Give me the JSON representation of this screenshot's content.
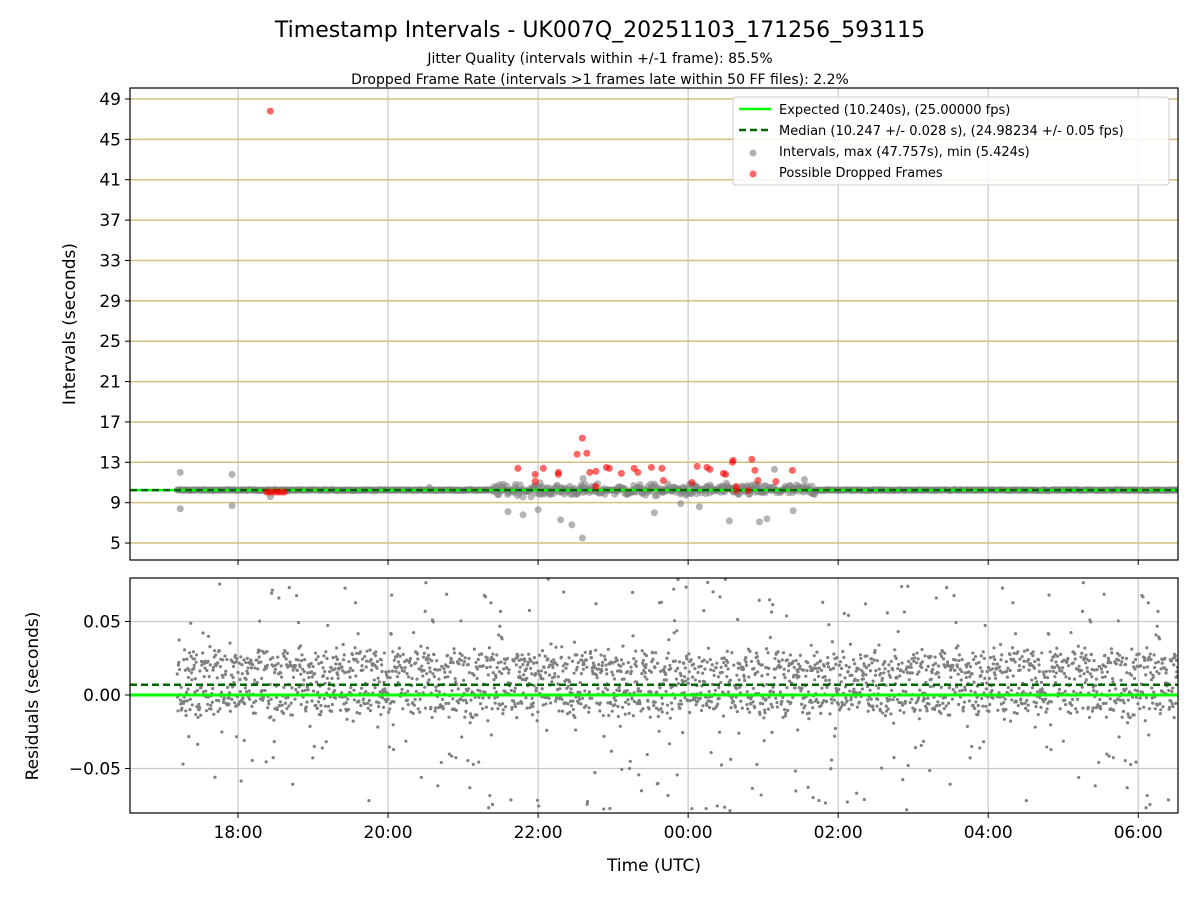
{
  "chart_data": [
    {
      "type": "scatter",
      "title": "Timestamp Intervals - UK007Q_20251103_171256_593115",
      "subtitle_1": "Jitter Quality (intervals within +/-1 frame): 85.5%",
      "subtitle_2": "Dropped Frame Rate (intervals >1 frames late within 50 FF files): 2.2%",
      "ylabel": "Intervals (seconds)",
      "x_unit": "hours relative to 18:00 UTC",
      "xlim": [
        -1.44,
        12.53
      ],
      "ylim": [
        3.32,
        50.09
      ],
      "yticks": [
        5,
        9,
        13,
        17,
        21,
        25,
        29,
        33,
        37,
        41,
        45,
        49
      ],
      "ytick_labels": [
        "5",
        "9",
        "13",
        "17",
        "21",
        "25",
        "29",
        "33",
        "37",
        "41",
        "45",
        "49"
      ],
      "grid": true,
      "legend_position": "top-right",
      "legend": [
        "Expected (10.240s), (25.00000 fps)",
        "Median (10.247 +/- 0.028 s), (24.98234 +/- 0.05 fps)",
        "Intervals, max (47.757s), min (5.424s)",
        "Possible Dropped Frames"
      ],
      "expected_interval": 10.24,
      "median_interval": 10.247,
      "max_interval": 47.757,
      "min_interval": 5.424,
      "data_start_hour": -0.81,
      "gray_outliers": [
        [
          -0.77,
          12.0
        ],
        [
          -0.77,
          8.4
        ],
        [
          -0.08,
          11.8
        ],
        [
          -0.08,
          8.7
        ],
        [
          0.43,
          9.6
        ],
        [
          4.59,
          5.5
        ],
        [
          4.45,
          6.8
        ],
        [
          4.3,
          7.3
        ],
        [
          3.6,
          8.1
        ],
        [
          3.8,
          7.8
        ],
        [
          4.0,
          8.3
        ],
        [
          5.55,
          8.0
        ],
        [
          6.55,
          7.2
        ],
        [
          6.95,
          7.1
        ],
        [
          7.05,
          7.4
        ],
        [
          7.4,
          8.2
        ],
        [
          6.15,
          8.6
        ],
        [
          5.9,
          8.9
        ],
        [
          4.6,
          11.4
        ],
        [
          7.55,
          11.3
        ],
        [
          7.15,
          12.3
        ],
        [
          2.55,
          10.5
        ],
        [
          3.7,
          10.8
        ]
      ],
      "dropped_frames": [
        [
          0.43,
          47.8
        ],
        [
          0.38,
          10.05
        ],
        [
          0.42,
          10.05
        ],
        [
          0.46,
          10.05
        ],
        [
          0.5,
          10.05
        ],
        [
          0.54,
          10.05
        ],
        [
          0.58,
          10.05
        ],
        [
          0.62,
          10.05
        ],
        [
          3.73,
          12.4
        ],
        [
          3.96,
          11.8
        ],
        [
          3.96,
          11.1
        ],
        [
          4.07,
          12.4
        ],
        [
          4.27,
          12.0
        ],
        [
          4.27,
          11.8
        ],
        [
          4.52,
          13.8
        ],
        [
          4.59,
          15.4
        ],
        [
          4.65,
          13.9
        ],
        [
          4.69,
          12.0
        ],
        [
          4.77,
          12.1
        ],
        [
          4.77,
          10.6
        ],
        [
          4.91,
          12.5
        ],
        [
          4.95,
          12.4
        ],
        [
          5.11,
          11.9
        ],
        [
          5.28,
          12.4
        ],
        [
          5.33,
          12.0
        ],
        [
          5.51,
          12.5
        ],
        [
          5.65,
          12.4
        ],
        [
          5.67,
          11.2
        ],
        [
          6.05,
          11.0
        ],
        [
          6.12,
          12.6
        ],
        [
          6.25,
          12.5
        ],
        [
          6.29,
          12.3
        ],
        [
          6.47,
          11.9
        ],
        [
          6.5,
          11.8
        ],
        [
          6.59,
          13.0
        ],
        [
          6.6,
          13.2
        ],
        [
          6.64,
          10.6
        ],
        [
          6.64,
          10.2
        ],
        [
          6.8,
          10.2
        ],
        [
          6.85,
          13.3
        ],
        [
          6.89,
          12.2
        ],
        [
          6.93,
          11.2
        ],
        [
          7.17,
          11.1
        ],
        [
          7.39,
          12.2
        ]
      ]
    },
    {
      "type": "scatter",
      "ylabel": "Residuals (seconds)",
      "xlabel": "Time (UTC)",
      "xlim": [
        -1.44,
        12.53
      ],
      "ylim": [
        -0.0803,
        0.0796
      ],
      "yticks": [
        -0.05,
        0,
        0.05
      ],
      "ytick_labels": [
        "−0.05",
        "0.00",
        "0.05"
      ],
      "xticks": [
        0,
        2,
        4,
        6,
        8,
        10,
        12
      ],
      "xtick_labels": [
        "18:00",
        "20:00",
        "22:00",
        "00:00",
        "02:00",
        "04:00",
        "06:00"
      ],
      "expected_residual": 0,
      "median_residual": 0.007,
      "residual_spread": 0.028,
      "point_count": 2600
    }
  ],
  "colors": {
    "expected": "#00ff00",
    "median": "#006400",
    "intervals": "#808080",
    "dropped": "#ff0000",
    "hgrid": "#d4bf80",
    "vgrid": "#c8c8c8"
  }
}
